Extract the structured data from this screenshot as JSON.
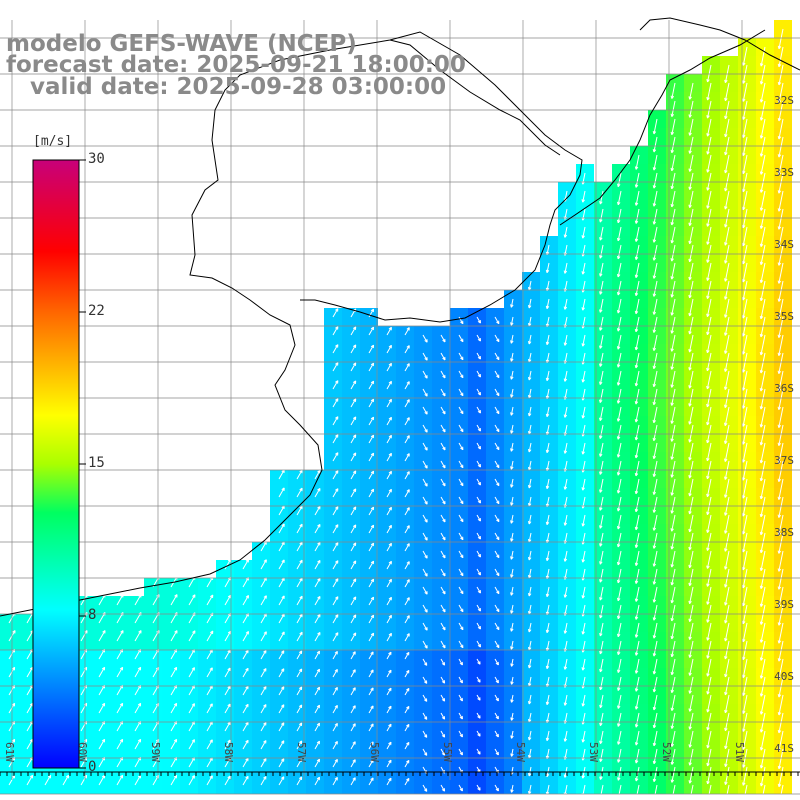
{
  "header": {
    "line1": "modelo GEFS-WAVE (NCEP)",
    "line2": "forecast date: 2025-09-21 18:00:00",
    "line3": "   valid date: 2025-09-28 03:00:00"
  },
  "colorbar": {
    "unit": "[m/s]",
    "ticks": [
      "30",
      "22",
      "15",
      "8",
      "0"
    ]
  },
  "axes": {
    "lat_labels": [
      "32S",
      "33S",
      "34S",
      "35S",
      "36S",
      "37S",
      "38S",
      "39S",
      "40S",
      "41S"
    ],
    "lon_labels": [
      "61W",
      "60W",
      "59W",
      "58W",
      "57W",
      "56W",
      "55W",
      "54W",
      "53W",
      "52W",
      "51W"
    ]
  },
  "chart_data": {
    "type": "heatmap",
    "variable": "wind speed with direction arrows",
    "unit": "m/s",
    "color_range": [
      0,
      30
    ],
    "lat_range": [
      -41.3,
      -31.0
    ],
    "lon_range": [
      -62.0,
      -51.0
    ],
    "grid": true
  },
  "colors": {
    "low": "#0000ff",
    "mid": "#00ffff",
    "green": "#00dd00",
    "yellow": "#ffff00",
    "high": "#ff0000",
    "max": "#c8006e"
  }
}
